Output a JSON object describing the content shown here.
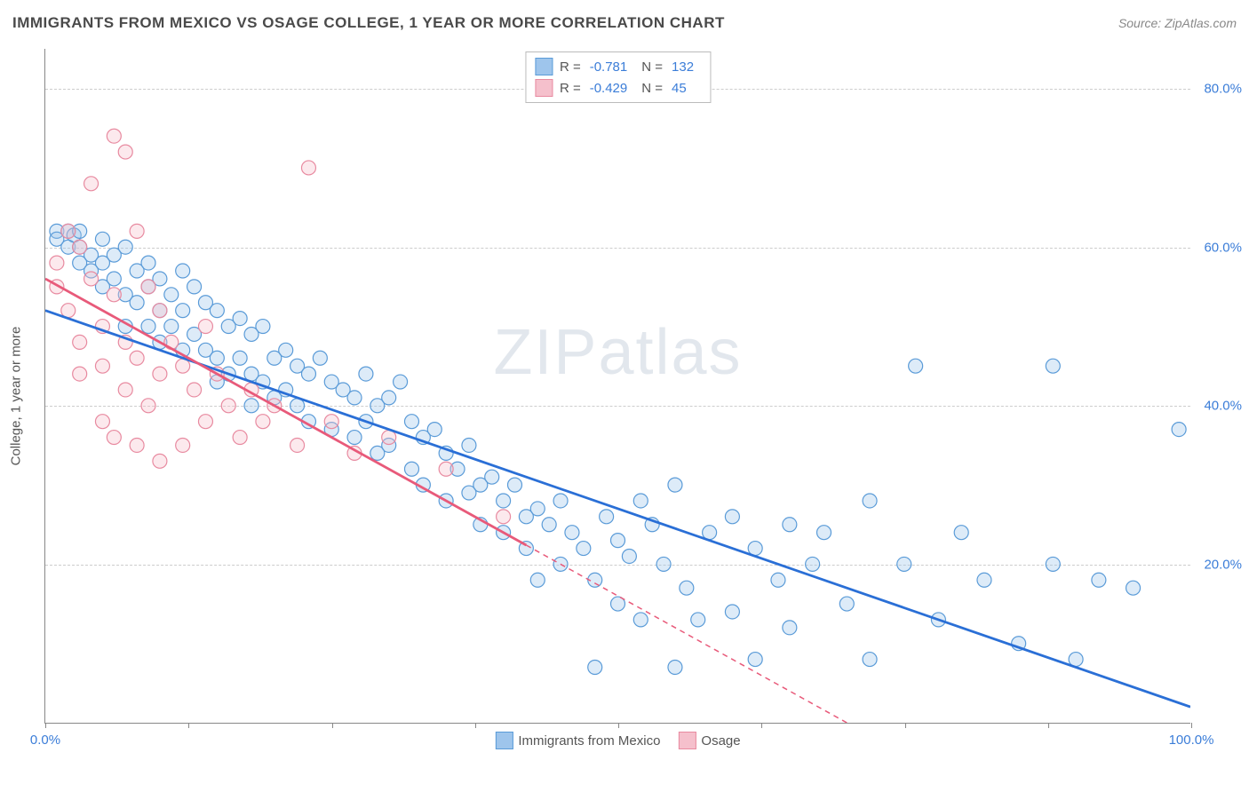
{
  "title": "IMMIGRANTS FROM MEXICO VS OSAGE COLLEGE, 1 YEAR OR MORE CORRELATION CHART",
  "source": "Source: ZipAtlas.com",
  "ylabel": "College, 1 year or more",
  "watermark_a": "ZIP",
  "watermark_b": "atlas",
  "chart": {
    "type": "scatter",
    "xlim": [
      0,
      100
    ],
    "ylim": [
      0,
      85
    ],
    "xtick_positions": [
      0,
      12.5,
      25,
      37.5,
      50,
      62.5,
      75,
      87.5,
      100
    ],
    "xtick_labels_shown": {
      "0": "0.0%",
      "100": "100.0%"
    },
    "ytick_positions": [
      20,
      40,
      60,
      80
    ],
    "ytick_labels": [
      "20.0%",
      "40.0%",
      "60.0%",
      "80.0%"
    ],
    "background_color": "#ffffff",
    "grid_color": "#cccccc",
    "axis_color": "#888888",
    "label_color": "#3b7dd8",
    "marker_radius": 8,
    "marker_fill_opacity": 0.35,
    "marker_stroke_width": 1.2,
    "trend_line_width": 2.8,
    "series": [
      {
        "name": "Immigrants from Mexico",
        "color_fill": "#9ec5ec",
        "color_stroke": "#5a9bd8",
        "line_color": "#2a6fd6",
        "R": "-0.781",
        "N": "132",
        "trend": {
          "x1": 0,
          "y1": 52,
          "x2": 100,
          "y2": 2
        },
        "trend_dash_after_x": null,
        "points": [
          [
            1,
            62
          ],
          [
            1,
            61
          ],
          [
            2,
            62
          ],
          [
            2,
            60
          ],
          [
            2.5,
            61.5
          ],
          [
            3,
            62
          ],
          [
            3,
            60
          ],
          [
            3,
            58
          ],
          [
            4,
            59
          ],
          [
            4,
            57
          ],
          [
            5,
            61
          ],
          [
            5,
            58
          ],
          [
            5,
            55
          ],
          [
            6,
            59
          ],
          [
            6,
            56
          ],
          [
            7,
            60
          ],
          [
            7,
            54
          ],
          [
            7,
            50
          ],
          [
            8,
            57
          ],
          [
            8,
            53
          ],
          [
            9,
            58
          ],
          [
            9,
            55
          ],
          [
            9,
            50
          ],
          [
            10,
            56
          ],
          [
            10,
            52
          ],
          [
            10,
            48
          ],
          [
            11,
            54
          ],
          [
            11,
            50
          ],
          [
            12,
            57
          ],
          [
            12,
            52
          ],
          [
            12,
            47
          ],
          [
            13,
            55
          ],
          [
            13,
            49
          ],
          [
            14,
            53
          ],
          [
            14,
            47
          ],
          [
            15,
            52
          ],
          [
            15,
            46
          ],
          [
            15,
            43
          ],
          [
            16,
            50
          ],
          [
            16,
            44
          ],
          [
            17,
            51
          ],
          [
            17,
            46
          ],
          [
            18,
            49
          ],
          [
            18,
            44
          ],
          [
            18,
            40
          ],
          [
            19,
            50
          ],
          [
            19,
            43
          ],
          [
            20,
            46
          ],
          [
            20,
            41
          ],
          [
            21,
            47
          ],
          [
            21,
            42
          ],
          [
            22,
            45
          ],
          [
            22,
            40
          ],
          [
            23,
            44
          ],
          [
            23,
            38
          ],
          [
            24,
            46
          ],
          [
            25,
            43
          ],
          [
            25,
            37
          ],
          [
            26,
            42
          ],
          [
            27,
            41
          ],
          [
            27,
            36
          ],
          [
            28,
            44
          ],
          [
            28,
            38
          ],
          [
            29,
            40
          ],
          [
            29,
            34
          ],
          [
            30,
            41
          ],
          [
            30,
            35
          ],
          [
            31,
            43
          ],
          [
            32,
            38
          ],
          [
            32,
            32
          ],
          [
            33,
            36
          ],
          [
            33,
            30
          ],
          [
            34,
            37
          ],
          [
            35,
            34
          ],
          [
            35,
            28
          ],
          [
            36,
            32
          ],
          [
            37,
            35
          ],
          [
            37,
            29
          ],
          [
            38,
            30
          ],
          [
            38,
            25
          ],
          [
            39,
            31
          ],
          [
            40,
            28
          ],
          [
            40,
            24
          ],
          [
            41,
            30
          ],
          [
            42,
            26
          ],
          [
            42,
            22
          ],
          [
            43,
            27
          ],
          [
            43,
            18
          ],
          [
            44,
            25
          ],
          [
            45,
            28
          ],
          [
            45,
            20
          ],
          [
            46,
            24
          ],
          [
            47,
            22
          ],
          [
            48,
            18
          ],
          [
            48,
            7
          ],
          [
            49,
            26
          ],
          [
            50,
            23
          ],
          [
            50,
            15
          ],
          [
            51,
            21
          ],
          [
            52,
            28
          ],
          [
            52,
            13
          ],
          [
            53,
            25
          ],
          [
            54,
            20
          ],
          [
            55,
            30
          ],
          [
            55,
            7
          ],
          [
            56,
            17
          ],
          [
            57,
            13
          ],
          [
            58,
            24
          ],
          [
            60,
            26
          ],
          [
            60,
            14
          ],
          [
            62,
            22
          ],
          [
            62,
            8
          ],
          [
            64,
            18
          ],
          [
            65,
            25
          ],
          [
            65,
            12
          ],
          [
            67,
            20
          ],
          [
            68,
            24
          ],
          [
            70,
            15
          ],
          [
            72,
            28
          ],
          [
            72,
            8
          ],
          [
            75,
            20
          ],
          [
            76,
            45
          ],
          [
            78,
            13
          ],
          [
            80,
            24
          ],
          [
            82,
            18
          ],
          [
            85,
            10
          ],
          [
            88,
            20
          ],
          [
            88,
            45
          ],
          [
            90,
            8
          ],
          [
            92,
            18
          ],
          [
            95,
            17
          ],
          [
            99,
            37
          ]
        ]
      },
      {
        "name": "Osage",
        "color_fill": "#f5c0cc",
        "color_stroke": "#e88aa0",
        "line_color": "#e85a7a",
        "R": "-0.429",
        "N": "45",
        "trend": {
          "x1": 0,
          "y1": 56,
          "x2": 70,
          "y2": 0
        },
        "trend_dash_after_x": 42,
        "points": [
          [
            1,
            58
          ],
          [
            1,
            55
          ],
          [
            2,
            62
          ],
          [
            2,
            52
          ],
          [
            3,
            60
          ],
          [
            3,
            48
          ],
          [
            3,
            44
          ],
          [
            4,
            56
          ],
          [
            4,
            68
          ],
          [
            5,
            50
          ],
          [
            5,
            45
          ],
          [
            5,
            38
          ],
          [
            6,
            74
          ],
          [
            6,
            54
          ],
          [
            6,
            36
          ],
          [
            7,
            72
          ],
          [
            7,
            48
          ],
          [
            7,
            42
          ],
          [
            8,
            62
          ],
          [
            8,
            46
          ],
          [
            8,
            35
          ],
          [
            9,
            55
          ],
          [
            9,
            40
          ],
          [
            10,
            52
          ],
          [
            10,
            44
          ],
          [
            10,
            33
          ],
          [
            11,
            48
          ],
          [
            12,
            45
          ],
          [
            12,
            35
          ],
          [
            13,
            42
          ],
          [
            14,
            50
          ],
          [
            14,
            38
          ],
          [
            15,
            44
          ],
          [
            16,
            40
          ],
          [
            17,
            36
          ],
          [
            18,
            42
          ],
          [
            19,
            38
          ],
          [
            20,
            40
          ],
          [
            22,
            35
          ],
          [
            23,
            70
          ],
          [
            25,
            38
          ],
          [
            27,
            34
          ],
          [
            30,
            36
          ],
          [
            35,
            32
          ],
          [
            40,
            26
          ]
        ]
      }
    ]
  },
  "legend_bottom": [
    {
      "label": "Immigrants from Mexico",
      "fill": "#9ec5ec",
      "stroke": "#5a9bd8"
    },
    {
      "label": "Osage",
      "fill": "#f5c0cc",
      "stroke": "#e88aa0"
    }
  ]
}
